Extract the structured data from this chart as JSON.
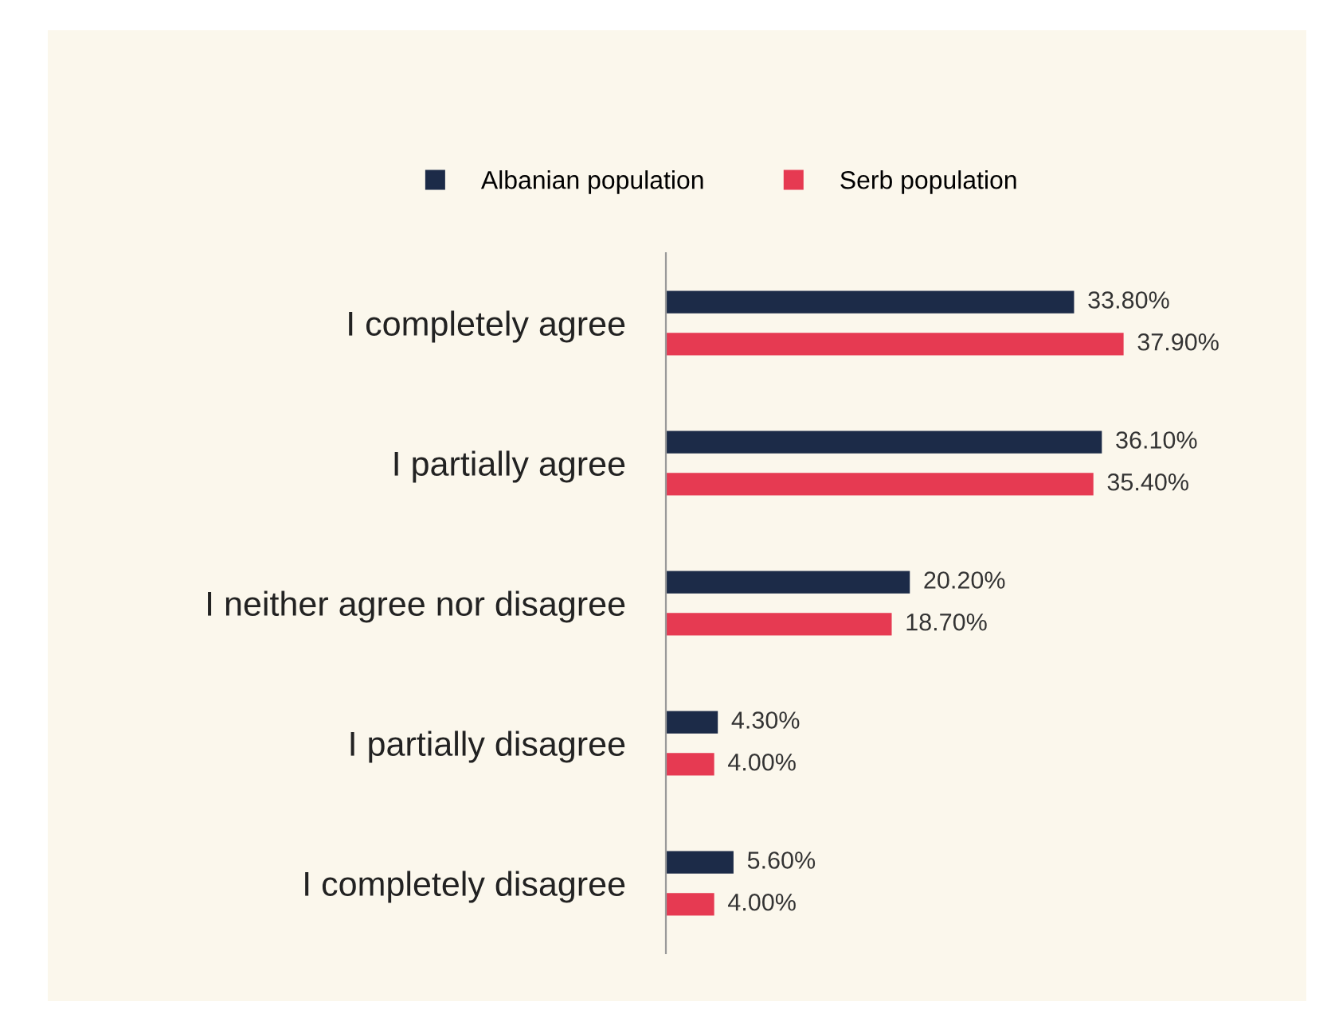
{
  "chart_data": {
    "type": "bar",
    "orientation": "horizontal",
    "categories": [
      "I completely agree",
      "I partially agree",
      "I neither agree nor disagree",
      "I partially disagree",
      "I completely disagree"
    ],
    "series": [
      {
        "name": "Albanian population",
        "color": "#1c2b48",
        "values": [
          33.8,
          36.1,
          20.2,
          4.3,
          5.6
        ],
        "value_labels": [
          "33.80%",
          "36.10%",
          "20.20%",
          "4.30%",
          "5.60%"
        ]
      },
      {
        "name": "Serb population",
        "color": "#e63a52",
        "values": [
          37.9,
          35.4,
          18.7,
          4.0,
          4.0
        ],
        "value_labels": [
          "37.90%",
          "35.40%",
          "18.70%",
          "4.00%",
          "4.00%"
        ]
      }
    ],
    "legend": "top",
    "grid": false,
    "tick_labels": "y"
  }
}
